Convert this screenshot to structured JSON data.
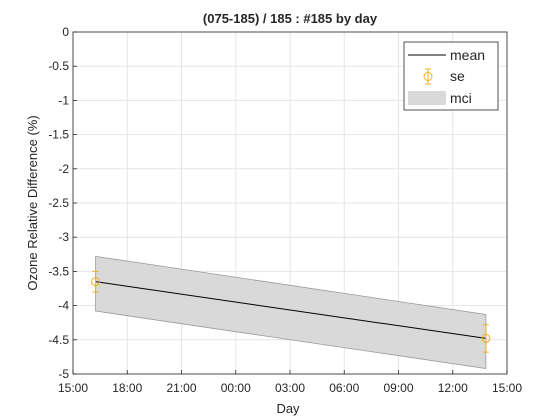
{
  "chart_data": {
    "type": "line",
    "title": "(075-185) / 185 : #185 by day",
    "xlabel": "Day",
    "ylabel": "Ozone Relative Difference (%)",
    "xlim": [
      "15:00",
      "15:00 (+1 day)"
    ],
    "xticks": [
      "15:00",
      "18:00",
      "21:00",
      "00:00",
      "03:00",
      "06:00",
      "09:00",
      "12:00",
      "15:00"
    ],
    "ylim": [
      -5,
      0
    ],
    "yticks": [
      "0",
      "-0.5",
      "-1",
      "-1.5",
      "-2",
      "-2.5",
      "-3",
      "-3.5",
      "-4",
      "-4.5",
      "-5"
    ],
    "grid": true,
    "legend_position": "top-right",
    "series": [
      {
        "name": "mean",
        "style": "line",
        "color": "#000000",
        "x": [
          "16:15",
          "13:50 (+1 day)"
        ],
        "y": [
          -3.65,
          -4.48
        ]
      },
      {
        "name": "se",
        "style": "errorbar-circle",
        "color": "#EDB120",
        "x": [
          "16:15",
          "13:50 (+1 day)"
        ],
        "y": [
          -3.65,
          -4.48
        ],
        "error": [
          0.15,
          0.2
        ]
      },
      {
        "name": "mci",
        "style": "band",
        "color": "#d9d9d9",
        "x": [
          "16:15",
          "13:50 (+1 day)"
        ],
        "lower": [
          -4.08,
          -4.92
        ],
        "upper": [
          -3.28,
          -4.13
        ]
      }
    ]
  }
}
